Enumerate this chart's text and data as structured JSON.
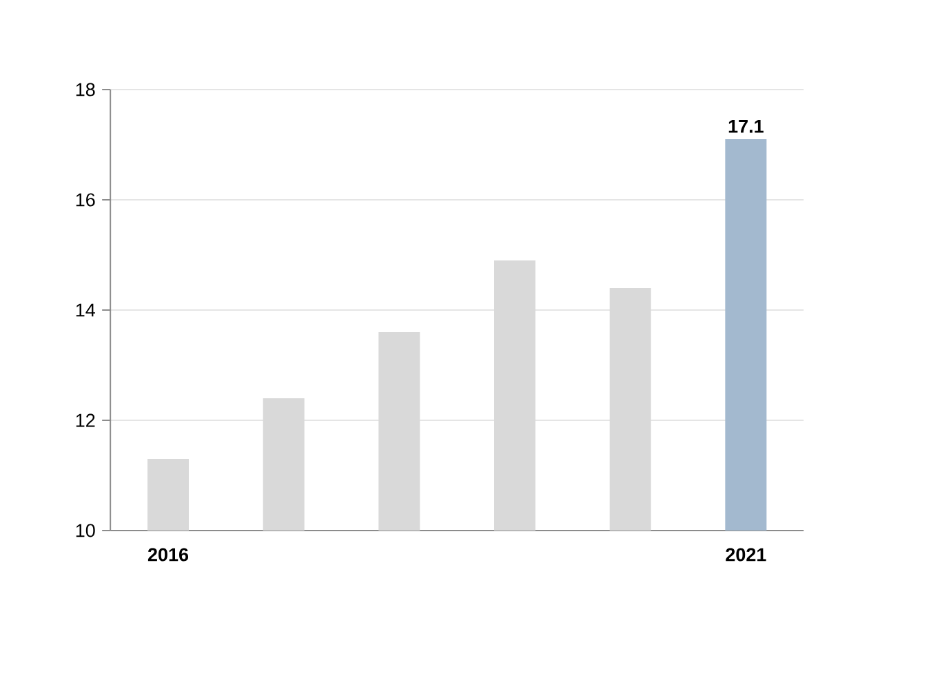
{
  "chart_data": {
    "type": "bar",
    "categories": [
      "2016",
      null,
      null,
      null,
      null,
      "2021"
    ],
    "values": [
      11.3,
      12.4,
      13.6,
      14.9,
      14.4,
      17.1
    ],
    "colors": [
      "#d9d9d9",
      "#d9d9d9",
      "#d9d9d9",
      "#d9d9d9",
      "#d9d9d9",
      "#a3b9cf"
    ],
    "value_labels": [
      null,
      null,
      null,
      null,
      null,
      "17.1"
    ],
    "ylim": [
      10,
      18
    ],
    "yticks": [
      10,
      12,
      14,
      16,
      18
    ],
    "grid": "y"
  }
}
